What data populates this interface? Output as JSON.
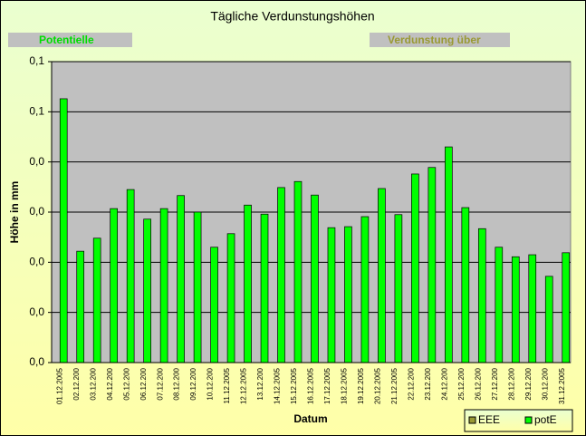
{
  "chart_data": {
    "type": "bar",
    "title": "Tägliche Verdunstungshöhen",
    "annotations": [
      "Potentielle",
      "Verdunstung über"
    ],
    "x_label": "Datum",
    "y_label": "Höhe in mm",
    "categories": [
      "01.12.2005",
      "02.12.200",
      "03.12.200",
      "04.12.200",
      "05.12.200",
      "06.12.200",
      "07.12.200",
      "08.12.200",
      "09.12.200",
      "10.12.200",
      "11.12.2005",
      "12.12.2005",
      "13.12.200",
      "14.12.2005",
      "15.12.2005",
      "16.12.2005",
      "17.12.2005",
      "18.12.2005",
      "19.12.2005",
      "20.12.2005",
      "21.12.2005",
      "22.12.200",
      "23.12.200",
      "24.12.200",
      "25.12.200",
      "26.12.200",
      "27.12.200",
      "28.12.200",
      "29.12.200",
      "30.12.200",
      "31.12.2005"
    ],
    "series": [
      {
        "name": "EEE",
        "color": "#999933",
        "values": [
          null,
          null,
          null,
          null,
          null,
          null,
          null,
          null,
          null,
          null,
          null,
          null,
          null,
          null,
          null,
          null,
          null,
          null,
          null,
          null,
          null,
          null,
          null,
          null,
          null,
          null,
          null,
          null,
          null,
          null,
          null
        ]
      },
      {
        "name": "potE",
        "color": "#00ff00",
        "values": [
          0.0526,
          0.0222,
          0.0248,
          0.0307,
          0.0345,
          0.0286,
          0.0307,
          0.0333,
          0.03,
          0.023,
          0.0257,
          0.0314,
          0.0296,
          0.0349,
          0.0361,
          0.0334,
          0.0269,
          0.0271,
          0.0291,
          0.0347,
          0.0295,
          0.0376,
          0.0389,
          0.043,
          0.0309,
          0.0267,
          0.023,
          0.0211,
          0.0215,
          0.0172,
          0.0219
        ]
      }
    ],
    "ylim": [
      0,
      0.06
    ],
    "yticks": [
      {
        "value": 0,
        "label": "0,0"
      },
      {
        "value": 0.01,
        "label": "0,0"
      },
      {
        "value": 0.02,
        "label": "0,0"
      },
      {
        "value": 0.03,
        "label": "0,0"
      },
      {
        "value": 0.04,
        "label": "0,0"
      },
      {
        "value": 0.05,
        "label": "0,1"
      },
      {
        "value": 0.06,
        "label": "0,1"
      }
    ],
    "grid": true,
    "legend": "bottom-right"
  }
}
